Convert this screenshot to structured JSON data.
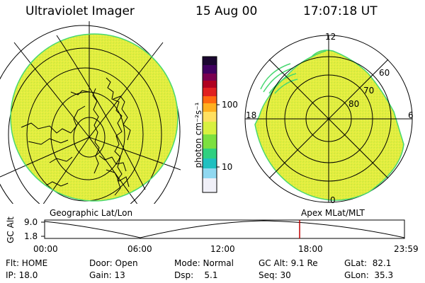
{
  "header": {
    "instrument": "Ultraviolet Imager",
    "date": "15 Aug 00",
    "time": "17:07:18 UT"
  },
  "left_panel": {
    "caption": "Geographic Lat/Lon"
  },
  "right_panel": {
    "caption": "Apex MLat/MLT",
    "mlt_labels": {
      "top": "12",
      "left": "18",
      "right": "6",
      "bottom": "0"
    },
    "lat_labels": [
      "60",
      "70",
      "80"
    ]
  },
  "colorbar": {
    "unit_label": "photon cm⁻²s⁻¹",
    "ticks": [
      "100",
      "10"
    ],
    "colors": [
      "#1a0630",
      "#400060",
      "#7a0050",
      "#b00020",
      "#e02020",
      "#ff6a10",
      "#ffb020",
      "#ffe060",
      "#d8f040",
      "#7ce040",
      "#30d080",
      "#20c0c0",
      "#90d8f0",
      "#f0f0f8"
    ]
  },
  "timeline": {
    "y_label": "GC Alt",
    "y_ticks": [
      "9.0",
      "1.8"
    ],
    "x_ticks": [
      "00:00",
      "06:00",
      "12:00",
      "18:00",
      "23:59"
    ]
  },
  "status": {
    "flt": "Flt: HOME",
    "ip": "IP: 18.0",
    "door": "Door: Open",
    "gain": "Gain: 13",
    "mode": "Mode: Normal",
    "dsp": "Dsp:    5.1",
    "gc_alt": "GC Alt: 9.1 Re",
    "seq": "Seq: 30",
    "glat": "GLat:  82.1",
    "glon": "GLon:  35.3"
  },
  "colors": {
    "disk_fill": "#e3ee3e",
    "disk_edge": "#48d870",
    "cursor": "#c00000"
  }
}
